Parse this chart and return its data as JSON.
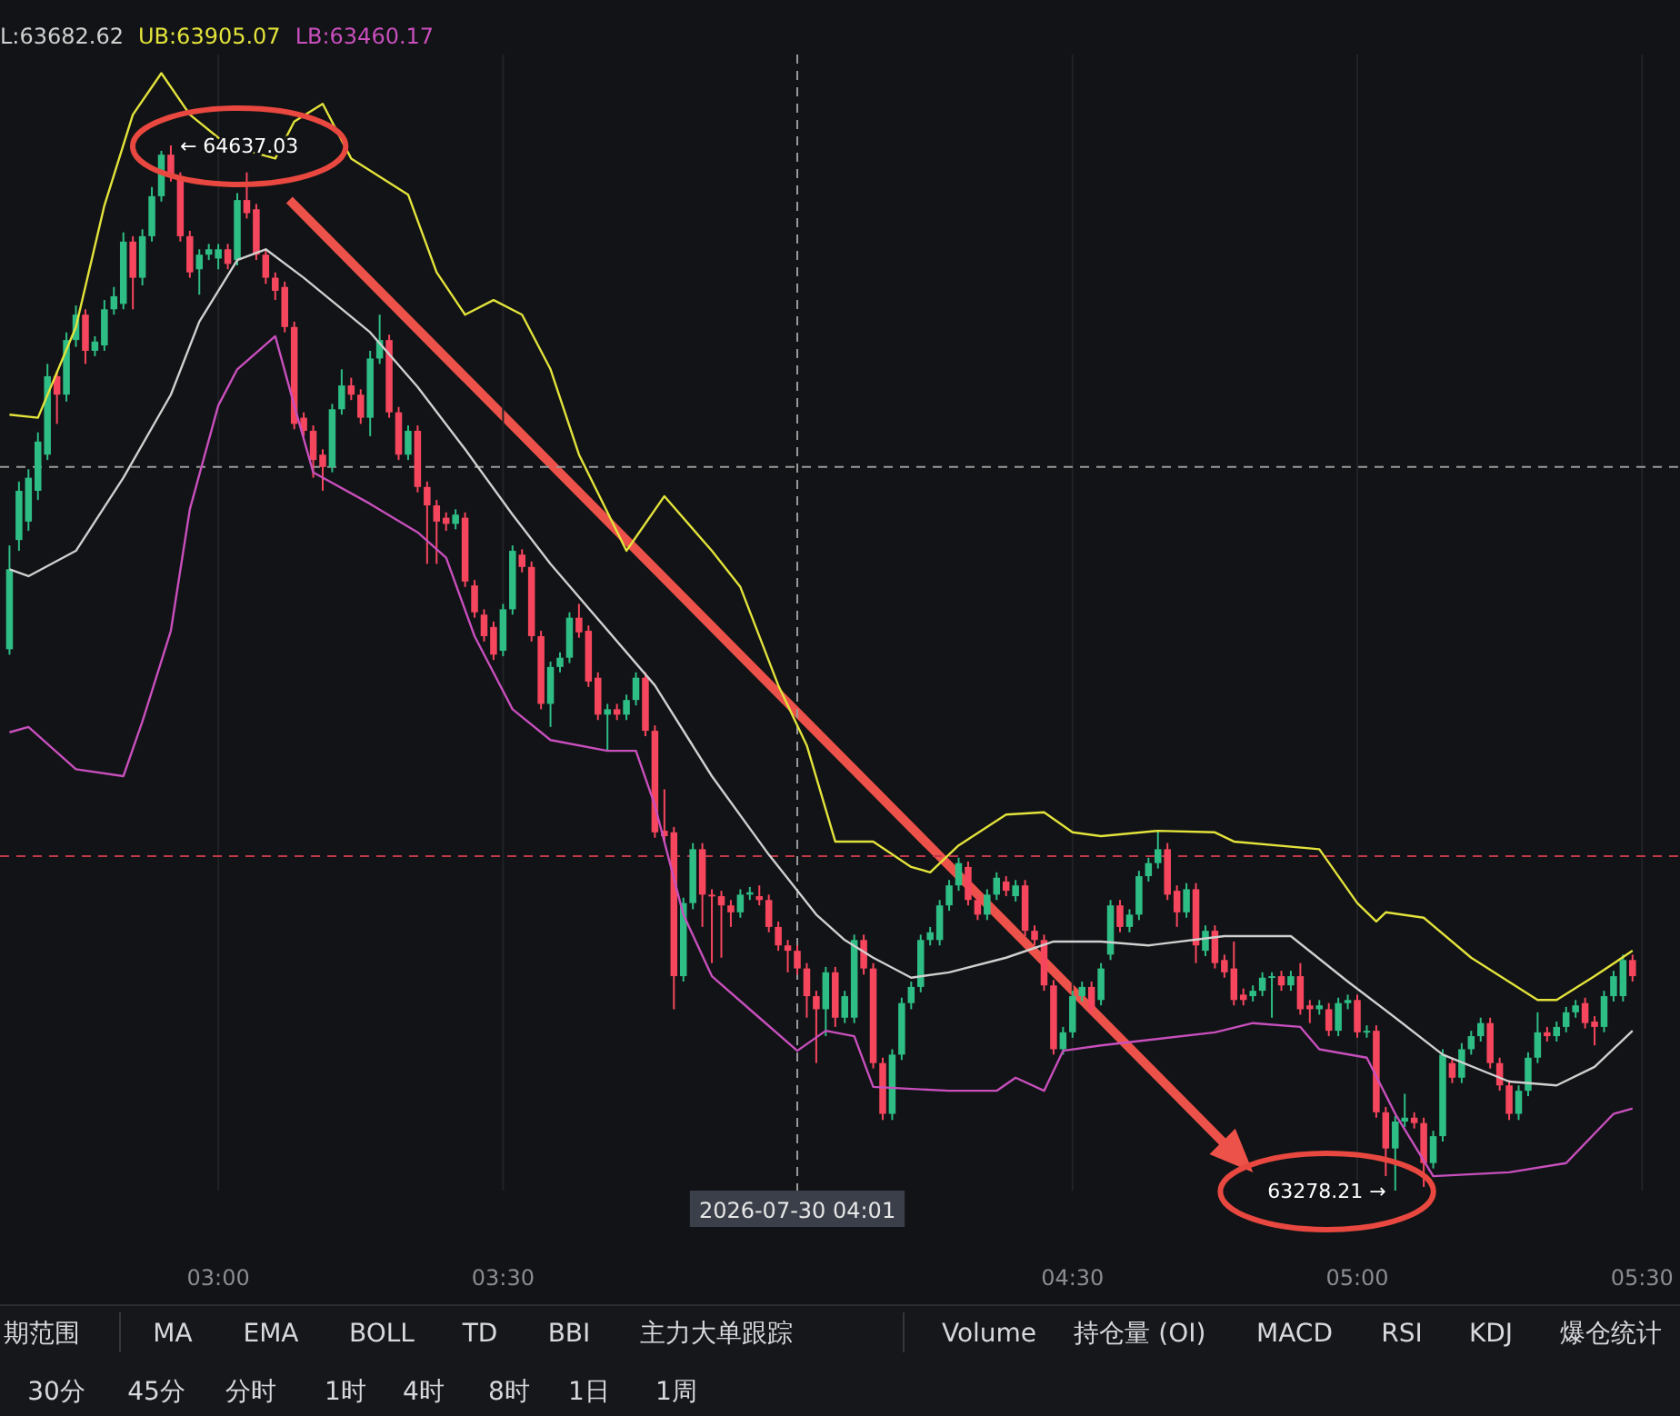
{
  "chart_data": {
    "type": "candlestick",
    "x": [
      "2026-07-30T02:38",
      "2026-07-30T02:39",
      "2026-07-30T02:40",
      "2026-07-30T02:41",
      "2026-07-30T02:42",
      "2026-07-30T02:43",
      "2026-07-30T02:44",
      "2026-07-30T02:45",
      "2026-07-30T02:46",
      "2026-07-30T02:47",
      "2026-07-30T02:48",
      "2026-07-30T02:49",
      "2026-07-30T02:50",
      "2026-07-30T02:51",
      "2026-07-30T02:52",
      "2026-07-30T02:53",
      "2026-07-30T02:54",
      "2026-07-30T02:55",
      "2026-07-30T02:56",
      "2026-07-30T02:57",
      "2026-07-30T02:58",
      "2026-07-30T02:59",
      "2026-07-30T03:00",
      "2026-07-30T03:01",
      "2026-07-30T03:02",
      "2026-07-30T03:03",
      "2026-07-30T03:04",
      "2026-07-30T03:05",
      "2026-07-30T03:06",
      "2026-07-30T03:07",
      "2026-07-30T03:08",
      "2026-07-30T03:09",
      "2026-07-30T03:10",
      "2026-07-30T03:11",
      "2026-07-30T03:12",
      "2026-07-30T03:13",
      "2026-07-30T03:14",
      "2026-07-30T03:15",
      "2026-07-30T03:16",
      "2026-07-30T03:17",
      "2026-07-30T03:18",
      "2026-07-30T03:19",
      "2026-07-30T03:20",
      "2026-07-30T03:21",
      "2026-07-30T03:22",
      "2026-07-30T03:23",
      "2026-07-30T03:24",
      "2026-07-30T03:25",
      "2026-07-30T03:26",
      "2026-07-30T03:27",
      "2026-07-30T03:28",
      "2026-07-30T03:29",
      "2026-07-30T03:30",
      "2026-07-30T03:31",
      "2026-07-30T03:32",
      "2026-07-30T03:33",
      "2026-07-30T03:34",
      "2026-07-30T03:35",
      "2026-07-30T03:36",
      "2026-07-30T03:37",
      "2026-07-30T03:38",
      "2026-07-30T03:39",
      "2026-07-30T03:40",
      "2026-07-30T03:41",
      "2026-07-30T03:42",
      "2026-07-30T03:43",
      "2026-07-30T03:44",
      "2026-07-30T03:45",
      "2026-07-30T03:46",
      "2026-07-30T03:47",
      "2026-07-30T03:48",
      "2026-07-30T03:49",
      "2026-07-30T03:50",
      "2026-07-30T03:51",
      "2026-07-30T03:52",
      "2026-07-30T03:53",
      "2026-07-30T03:54",
      "2026-07-30T03:55",
      "2026-07-30T03:56",
      "2026-07-30T03:57",
      "2026-07-30T03:58",
      "2026-07-30T03:59",
      "2026-07-30T04:00",
      "2026-07-30T04:01",
      "2026-07-30T04:02",
      "2026-07-30T04:03",
      "2026-07-30T04:04",
      "2026-07-30T04:05",
      "2026-07-30T04:06",
      "2026-07-30T04:07",
      "2026-07-30T04:08",
      "2026-07-30T04:09",
      "2026-07-30T04:10",
      "2026-07-30T04:11",
      "2026-07-30T04:12",
      "2026-07-30T04:13",
      "2026-07-30T04:14",
      "2026-07-30T04:15",
      "2026-07-30T04:16",
      "2026-07-30T04:17",
      "2026-07-30T04:18",
      "2026-07-30T04:19",
      "2026-07-30T04:20",
      "2026-07-30T04:21",
      "2026-07-30T04:22",
      "2026-07-30T04:23",
      "2026-07-30T04:24",
      "2026-07-30T04:25",
      "2026-07-30T04:26",
      "2026-07-30T04:27",
      "2026-07-30T04:28",
      "2026-07-30T04:29",
      "2026-07-30T04:30",
      "2026-07-30T04:31",
      "2026-07-30T04:32",
      "2026-07-30T04:33",
      "2026-07-30T04:34",
      "2026-07-30T04:35",
      "2026-07-30T04:36",
      "2026-07-30T04:37",
      "2026-07-30T04:38",
      "2026-07-30T04:39",
      "2026-07-30T04:40",
      "2026-07-30T04:41",
      "2026-07-30T04:42",
      "2026-07-30T04:43",
      "2026-07-30T04:44",
      "2026-07-30T04:45",
      "2026-07-30T04:46",
      "2026-07-30T04:47",
      "2026-07-30T04:48",
      "2026-07-30T04:49",
      "2026-07-30T04:50",
      "2026-07-30T04:51",
      "2026-07-30T04:52",
      "2026-07-30T04:53",
      "2026-07-30T04:54",
      "2026-07-30T04:55",
      "2026-07-30T04:56",
      "2026-07-30T04:57",
      "2026-07-30T04:58",
      "2026-07-30T04:59",
      "2026-07-30T05:00",
      "2026-07-30T05:01",
      "2026-07-30T05:02",
      "2026-07-30T05:03",
      "2026-07-30T05:04",
      "2026-07-30T05:05",
      "2026-07-30T05:06",
      "2026-07-30T05:07",
      "2026-07-30T05:08",
      "2026-07-30T05:09",
      "2026-07-30T05:10",
      "2026-07-30T05:11",
      "2026-07-30T05:12",
      "2026-07-30T05:13",
      "2026-07-30T05:14",
      "2026-07-30T05:15",
      "2026-07-30T05:16",
      "2026-07-30T05:17",
      "2026-07-30T05:18",
      "2026-07-30T05:19",
      "2026-07-30T05:20",
      "2026-07-30T05:21",
      "2026-07-30T05:22",
      "2026-07-30T05:23",
      "2026-07-30T05:24",
      "2026-07-30T05:25",
      "2026-07-30T05:26",
      "2026-07-30T05:27",
      "2026-07-30T05:28",
      "2026-07-30T05:29"
    ],
    "ohlc": [
      [
        63982,
        64117,
        63975,
        64086
      ],
      [
        64124,
        64200,
        64110,
        64188
      ],
      [
        64148,
        64216,
        64136,
        64205
      ],
      [
        64188,
        64264,
        64176,
        64252
      ],
      [
        64235,
        64353,
        64228,
        64337
      ],
      [
        64337,
        64344,
        64275,
        64313
      ],
      [
        64313,
        64394,
        64304,
        64384
      ],
      [
        64384,
        64429,
        64375,
        64417
      ],
      [
        64417,
        64424,
        64353,
        64370
      ],
      [
        64370,
        64389,
        64363,
        64382
      ],
      [
        64377,
        64436,
        64370,
        64424
      ],
      [
        64424,
        64453,
        64417,
        64441
      ],
      [
        64431,
        64524,
        64424,
        64512
      ],
      [
        64512,
        64519,
        64424,
        64465
      ],
      [
        64465,
        64528,
        64455,
        64519
      ],
      [
        64519,
        64583,
        64512,
        64571
      ],
      [
        64571,
        64630,
        64564,
        64625
      ],
      [
        64625,
        64637.03,
        64590,
        64597
      ],
      [
        64597,
        64602,
        64512,
        64519
      ],
      [
        64519,
        64526,
        64465,
        64472
      ],
      [
        64476,
        64502,
        64443,
        64495
      ],
      [
        64495,
        64509,
        64488,
        64502
      ],
      [
        64490,
        64509,
        64476,
        64502
      ],
      [
        64502,
        64509,
        64476,
        64483
      ],
      [
        64488,
        64575,
        64481,
        64566
      ],
      [
        64566,
        64602,
        64542,
        64549
      ],
      [
        64554,
        64561,
        64488,
        64495
      ],
      [
        64495,
        64502,
        64457,
        64465
      ],
      [
        64465,
        64472,
        64436,
        64448
      ],
      [
        64453,
        64460,
        64394,
        64401
      ],
      [
        64401,
        64408,
        64268,
        64275
      ],
      [
        64283,
        64290,
        64259,
        64266
      ],
      [
        64266,
        64273,
        64205,
        64228
      ],
      [
        64235,
        64242,
        64188,
        64219
      ],
      [
        64219,
        64301,
        64212,
        64294
      ],
      [
        64294,
        64346,
        64287,
        64325
      ],
      [
        64325,
        64335,
        64306,
        64313
      ],
      [
        64313,
        64320,
        64275,
        64283
      ],
      [
        64283,
        64370,
        64259,
        64360
      ],
      [
        64360,
        64417,
        64353,
        64384
      ],
      [
        64384,
        64391,
        64283,
        64290
      ],
      [
        64290,
        64297,
        64228,
        64235
      ],
      [
        64235,
        64273,
        64228,
        64266
      ],
      [
        64266,
        64273,
        64186,
        64193
      ],
      [
        64193,
        64200,
        64093,
        64169
      ],
      [
        64169,
        64176,
        64093,
        64148
      ],
      [
        64153,
        64160,
        64136,
        64145
      ],
      [
        64145,
        64164,
        64138,
        64157
      ],
      [
        64153,
        64160,
        64063,
        64070
      ],
      [
        64065,
        64072,
        64023,
        64030
      ],
      [
        64027,
        64034,
        63992,
        63999
      ],
      [
        64011,
        64018,
        63968,
        63975
      ],
      [
        63980,
        64041,
        63973,
        64034
      ],
      [
        64034,
        64117,
        64027,
        64110
      ],
      [
        64105,
        64112,
        64082,
        64089
      ],
      [
        64089,
        64096,
        63992,
        63999
      ],
      [
        63999,
        64006,
        63904,
        63911
      ],
      [
        63911,
        63966,
        63881,
        63959
      ],
      [
        63959,
        63978,
        63952,
        63971
      ],
      [
        63971,
        64030,
        63964,
        64023
      ],
      [
        64023,
        64041,
        63997,
        64004
      ],
      [
        64006,
        64013,
        63933,
        63940
      ],
      [
        63945,
        63952,
        63890,
        63897
      ],
      [
        63897,
        63911,
        63850,
        63904
      ],
      [
        63904,
        63911,
        63890,
        63897
      ],
      [
        63897,
        63923,
        63890,
        63916
      ],
      [
        63916,
        63952,
        63909,
        63945
      ],
      [
        63945,
        63952,
        63869,
        63876
      ],
      [
        63876,
        63883,
        63737,
        63744
      ],
      [
        63746,
        63800,
        63732,
        63739
      ],
      [
        63744,
        63751,
        63514,
        63557
      ],
      [
        63557,
        63659,
        63550,
        63652
      ],
      [
        63652,
        63730,
        63644,
        63722
      ],
      [
        63722,
        63730,
        63621,
        63663
      ],
      [
        63663,
        63670,
        63574,
        63661
      ],
      [
        63661,
        63668,
        63581,
        63649
      ],
      [
        63649,
        63656,
        63621,
        63640
      ],
      [
        63640,
        63670,
        63633,
        63663
      ],
      [
        63663,
        63673,
        63656,
        63666
      ],
      [
        63661,
        63675,
        63649,
        63656
      ],
      [
        63656,
        63663,
        63614,
        63621
      ],
      [
        63621,
        63628,
        63590,
        63597
      ],
      [
        63597,
        63604,
        63562,
        63590
      ],
      [
        63590,
        63597,
        63559,
        63567
      ],
      [
        63567,
        63574,
        63503,
        63531
      ],
      [
        63531,
        63538,
        63444,
        63514
      ],
      [
        63514,
        63569,
        63479,
        63562
      ],
      [
        63562,
        63569,
        63491,
        63503
      ],
      [
        63503,
        63538,
        63496,
        63531
      ],
      [
        63503,
        63611,
        63496,
        63604
      ],
      [
        63604,
        63611,
        63559,
        63567
      ],
      [
        63567,
        63574,
        63437,
        63444
      ],
      [
        63444,
        63451,
        63370,
        63378
      ],
      [
        63378,
        63462,
        63370,
        63455
      ],
      [
        63455,
        63529,
        63448,
        63522
      ],
      [
        63522,
        63550,
        63514,
        63543
      ],
      [
        63543,
        63611,
        63536,
        63604
      ],
      [
        63604,
        63621,
        63597,
        63614
      ],
      [
        63604,
        63656,
        63597,
        63649
      ],
      [
        63649,
        63682,
        63642,
        63675
      ],
      [
        63675,
        63711,
        63668,
        63704
      ],
      [
        63699,
        63706,
        63649,
        63656
      ],
      [
        63656,
        63663,
        63630,
        63637
      ],
      [
        63637,
        63670,
        63630,
        63663
      ],
      [
        63663,
        63692,
        63656,
        63685
      ],
      [
        63680,
        63687,
        63661,
        63668
      ],
      [
        63661,
        63682,
        63654,
        63675
      ],
      [
        63675,
        63682,
        63609,
        63616
      ],
      [
        63616,
        63623,
        63597,
        63604
      ],
      [
        63604,
        63611,
        63538,
        63545
      ],
      [
        63545,
        63552,
        63455,
        63462
      ],
      [
        63462,
        63491,
        63455,
        63484
      ],
      [
        63484,
        63538,
        63477,
        63531
      ],
      [
        63531,
        63550,
        63524,
        63543
      ],
      [
        63543,
        63550,
        63507,
        63514
      ],
      [
        63526,
        63574,
        63519,
        63567
      ],
      [
        63585,
        63656,
        63578,
        63649
      ],
      [
        63649,
        63656,
        63614,
        63621
      ],
      [
        63621,
        63644,
        63614,
        63637
      ],
      [
        63637,
        63694,
        63630,
        63687
      ],
      [
        63687,
        63711,
        63680,
        63704
      ],
      [
        63704,
        63746,
        63697,
        63722
      ],
      [
        63722,
        63730,
        63656,
        63663
      ],
      [
        63668,
        63675,
        63621,
        63640
      ],
      [
        63640,
        63678,
        63633,
        63670
      ],
      [
        63670,
        63678,
        63574,
        63597
      ],
      [
        63590,
        63623,
        63583,
        63616
      ],
      [
        63616,
        63623,
        63567,
        63574
      ],
      [
        63578,
        63585,
        63555,
        63562
      ],
      [
        63567,
        63602,
        63519,
        63526
      ],
      [
        63533,
        63541,
        63519,
        63526
      ],
      [
        63531,
        63545,
        63524,
        63538
      ],
      [
        63538,
        63562,
        63531,
        63555
      ],
      [
        63555,
        63562,
        63503,
        63557
      ],
      [
        63557,
        63564,
        63538,
        63545
      ],
      [
        63545,
        63564,
        63538,
        63557
      ],
      [
        63557,
        63574,
        63507,
        63514
      ],
      [
        63519,
        63526,
        63496,
        63514
      ],
      [
        63514,
        63526,
        63507,
        63519
      ],
      [
        63514,
        63522,
        63479,
        63486
      ],
      [
        63486,
        63529,
        63479,
        63522
      ],
      [
        63522,
        63533,
        63514,
        63526
      ],
      [
        63526,
        63533,
        63477,
        63484
      ],
      [
        63484,
        63493,
        63477,
        63486
      ],
      [
        63486,
        63493,
        63373,
        63380
      ],
      [
        63380,
        63387,
        63297,
        63333
      ],
      [
        63333,
        63375,
        63278.21,
        63368
      ],
      [
        63368,
        63404,
        63361,
        63373
      ],
      [
        63373,
        63380,
        63359,
        63366
      ],
      [
        63366,
        63373,
        63283,
        63314
      ],
      [
        63314,
        63356,
        63307,
        63349
      ],
      [
        63349,
        63462,
        63342,
        63455
      ],
      [
        63444,
        63451,
        63418,
        63425
      ],
      [
        63425,
        63470,
        63418,
        63462
      ],
      [
        63462,
        63486,
        63455,
        63479
      ],
      [
        63479,
        63503,
        63472,
        63496
      ],
      [
        63496,
        63503,
        63437,
        63444
      ],
      [
        63444,
        63451,
        63408,
        63415
      ],
      [
        63415,
        63422,
        63370,
        63378
      ],
      [
        63378,
        63415,
        63370,
        63408
      ],
      [
        63408,
        63458,
        63401,
        63451
      ],
      [
        63451,
        63510,
        63444,
        63484
      ],
      [
        63484,
        63491,
        63472,
        63479
      ],
      [
        63479,
        63498,
        63472,
        63491
      ],
      [
        63491,
        63517,
        63484,
        63510
      ],
      [
        63510,
        63526,
        63503,
        63519
      ],
      [
        63522,
        63529,
        63489,
        63496
      ],
      [
        63498,
        63505,
        63467,
        63491
      ],
      [
        63491,
        63538,
        63484,
        63531
      ],
      [
        63531,
        63564,
        63524,
        63557
      ],
      [
        63531,
        63585,
        63524,
        63578
      ],
      [
        63578,
        63585,
        63550,
        63557
      ]
    ],
    "series": [
      {
        "name": "L:63682.62",
        "type": "line",
        "color": "#d0d0d0",
        "x": [
          "2026-07-30T02:38",
          "2026-07-30T02:40",
          "2026-07-30T02:45",
          "2026-07-30T02:50",
          "2026-07-30T02:55",
          "2026-07-30T02:58",
          "2026-07-30T03:02",
          "2026-07-30T03:05",
          "2026-07-30T03:09",
          "2026-07-30T03:16",
          "2026-07-30T03:21",
          "2026-07-30T03:26",
          "2026-07-30T03:31",
          "2026-07-30T03:35",
          "2026-07-30T03:46",
          "2026-07-30T03:52",
          "2026-07-30T03:58",
          "2026-07-30T04:03",
          "2026-07-30T04:06",
          "2026-07-30T04:09",
          "2026-07-30T04:13",
          "2026-07-30T04:17",
          "2026-07-30T04:23",
          "2026-07-30T04:28",
          "2026-07-30T04:33",
          "2026-07-30T04:38",
          "2026-07-30T04:46",
          "2026-07-30T04:53",
          "2026-07-30T04:59",
          "2026-07-30T05:04",
          "2026-07-30T05:09",
          "2026-07-30T05:16",
          "2026-07-30T05:21",
          "2026-07-30T05:25",
          "2026-07-30T05:29"
        ],
        "values": [
          64086,
          64077,
          64110,
          64205,
          64313,
          64408,
          64488,
          64502,
          64465,
          64394,
          64323,
          64242,
          64157,
          64093,
          63935,
          63817,
          63715,
          63637,
          63604,
          63581,
          63555,
          63562,
          63581,
          63602,
          63602,
          63597,
          63609,
          63609,
          63550,
          63503,
          63455,
          63420,
          63415,
          63439,
          63486
        ]
      },
      {
        "name": "UB:63905.07",
        "type": "line",
        "color": "#e3e33c",
        "x": [
          "2026-07-30T02:38",
          "2026-07-30T02:41",
          "2026-07-30T02:45",
          "2026-07-30T02:48",
          "2026-07-30T02:51",
          "2026-07-30T02:54",
          "2026-07-30T02:57",
          "2026-07-30T03:01",
          "2026-07-30T03:06",
          "2026-07-30T03:08",
          "2026-07-30T03:11",
          "2026-07-30T03:14",
          "2026-07-30T03:20",
          "2026-07-30T03:23",
          "2026-07-30T03:26",
          "2026-07-30T03:29",
          "2026-07-30T03:32",
          "2026-07-30T03:35",
          "2026-07-30T03:38",
          "2026-07-30T03:43",
          "2026-07-30T03:47",
          "2026-07-30T03:52",
          "2026-07-30T03:55",
          "2026-07-30T03:59",
          "2026-07-30T04:02",
          "2026-07-30T04:05",
          "2026-07-30T04:09",
          "2026-07-30T04:13",
          "2026-07-30T04:15",
          "2026-07-30T04:18",
          "2026-07-30T04:23",
          "2026-07-30T04:27",
          "2026-07-30T04:30",
          "2026-07-30T04:33",
          "2026-07-30T04:39",
          "2026-07-30T04:45",
          "2026-07-30T04:47",
          "2026-07-30T04:56",
          "2026-07-30T05:00",
          "2026-07-30T05:02",
          "2026-07-30T05:03",
          "2026-07-30T05:07",
          "2026-07-30T05:12",
          "2026-07-30T05:19",
          "2026-07-30T05:21",
          "2026-07-30T05:25",
          "2026-07-30T05:29"
        ],
        "values": [
          64287,
          64283,
          64401,
          64559,
          64677,
          64731,
          64677,
          64637,
          64620,
          64668,
          64691,
          64620,
          64573,
          64472,
          64417,
          64436,
          64417,
          64346,
          64235,
          64110,
          64181,
          64110,
          64063,
          63935,
          63857,
          63732,
          63732,
          63699,
          63692,
          63727,
          63767,
          63770,
          63744,
          63739,
          63746,
          63744,
          63732,
          63722,
          63652,
          63628,
          63640,
          63633,
          63581,
          63526,
          63526,
          63557,
          63590
        ]
      },
      {
        "name": "LB:63460.17",
        "type": "line",
        "color": "#c84fbd",
        "x": [
          "2026-07-30T02:38",
          "2026-07-30T02:40",
          "2026-07-30T02:45",
          "2026-07-30T02:50",
          "2026-07-30T02:52",
          "2026-07-30T02:55",
          "2026-07-30T02:57",
          "2026-07-30T03:00",
          "2026-07-30T03:02",
          "2026-07-30T03:06",
          "2026-07-30T03:08",
          "2026-07-30T03:10",
          "2026-07-30T03:16",
          "2026-07-30T03:21",
          "2026-07-30T03:24",
          "2026-07-30T03:27",
          "2026-07-30T03:31",
          "2026-07-30T03:35",
          "2026-07-30T03:41",
          "2026-07-30T03:44",
          "2026-07-30T03:46",
          "2026-07-30T03:49",
          "2026-07-30T03:52",
          "2026-07-30T03:57",
          "2026-07-30T04:01",
          "2026-07-30T04:04",
          "2026-07-30T04:07",
          "2026-07-30T04:09",
          "2026-07-30T04:17",
          "2026-07-30T04:22",
          "2026-07-30T04:24",
          "2026-07-30T04:27",
          "2026-07-30T04:29",
          "2026-07-30T04:33",
          "2026-07-30T04:45",
          "2026-07-30T04:49",
          "2026-07-30T04:54",
          "2026-07-30T04:56",
          "2026-07-30T05:01",
          "2026-07-30T05:04",
          "2026-07-30T05:08",
          "2026-07-30T05:16",
          "2026-07-30T05:22",
          "2026-07-30T05:27",
          "2026-07-30T05:29"
        ],
        "values": [
          63874,
          63881,
          63826,
          63817,
          63888,
          64006,
          64164,
          64299,
          64346,
          64389,
          64299,
          64212,
          64171,
          64134,
          64101,
          63999,
          63904,
          63864,
          63850,
          63850,
          63779,
          63637,
          63557,
          63503,
          63460,
          63486,
          63479,
          63413,
          63408,
          63408,
          63425,
          63408,
          63460,
          63467,
          63484,
          63496,
          63491,
          63462,
          63451,
          63378,
          63297,
          63302,
          63314,
          63378,
          63385
        ]
      }
    ],
    "xlim": [
      "2026-07-30T02:37",
      "2026-07-30T05:34"
    ],
    "xticks": [
      {
        "value": "2026-07-30T03:00",
        "label": "03:00"
      },
      {
        "value": "2026-07-30T03:30",
        "label": "03:30"
      },
      {
        "value": "2026-07-30T04:30",
        "label": "04:30"
      },
      {
        "value": "2026-07-30T05:00",
        "label": "05:00"
      },
      {
        "value": "2026-07-30T05:30",
        "label": "05:30"
      }
    ],
    "ref_lines": [
      {
        "axis": "x",
        "value": "2026-07-30T04:01",
        "label": "2026-07-30 04:01",
        "color": "#9a9a9a",
        "line_style": "dashed"
      },
      {
        "axis": "y",
        "value": 64219,
        "label": null,
        "color": "#9a9a9a",
        "line_style": "dashed"
      },
      {
        "axis": "y",
        "value": 63713,
        "label": null,
        "color": "#c0394a",
        "line_style": "dashed"
      }
    ],
    "annotations": [
      {
        "text": "← 64637.03",
        "x": "2026-07-30T02:55",
        "y": 64637.03
      },
      {
        "text": "63278.21 →",
        "x": "2026-07-30T05:04",
        "y": 63278.21
      },
      "期范围",
      "MA",
      "EMA",
      "BOLL",
      "TD",
      "BBI",
      "主力大单跟踪",
      "Volume",
      "持仓量 (OI)",
      "MACD",
      "RSI",
      "KDJ",
      "爆仓统计",
      "30分",
      "45分",
      "分时",
      "1时",
      "4时",
      "8时",
      "1日",
      "1周"
    ],
    "grid": "x",
    "legend": "top left"
  }
}
